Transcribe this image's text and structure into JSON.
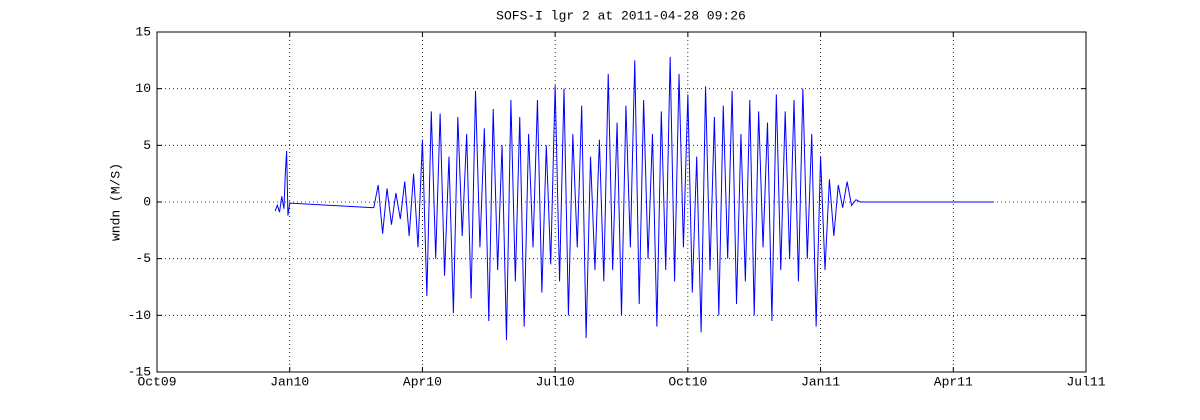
{
  "chart_data": {
    "type": "line",
    "title": "SOFS-I lgr 2 at 2011-04-28 09:26",
    "y_label": "wndn (M/S)",
    "color": "#0000ff",
    "grid": true,
    "xlim": [
      0,
      21
    ],
    "xticks": [
      {
        "value": 0,
        "label": "Oct09"
      },
      {
        "value": 3,
        "label": "Jan10"
      },
      {
        "value": 6,
        "label": "Apr10"
      },
      {
        "value": 9,
        "label": "Jul10"
      },
      {
        "value": 12,
        "label": "Oct10"
      },
      {
        "value": 15,
        "label": "Jan11"
      },
      {
        "value": 18,
        "label": "Apr11"
      },
      {
        "value": 21,
        "label": "Jul11"
      }
    ],
    "ylim": [
      -15,
      15
    ],
    "yticks": [
      -15,
      -10,
      -5,
      0,
      5,
      10,
      15
    ],
    "x": [
      2.67,
      2.72,
      2.77,
      2.82,
      2.87,
      2.9,
      2.93,
      2.96,
      3.0,
      4.86,
      4.9,
      5.0,
      5.1,
      5.2,
      5.3,
      5.4,
      5.5,
      5.6,
      5.7,
      5.8,
      5.9,
      6.0,
      6.1,
      6.2,
      6.3,
      6.4,
      6.5,
      6.6,
      6.7,
      6.8,
      6.9,
      7.0,
      7.1,
      7.2,
      7.3,
      7.4,
      7.5,
      7.6,
      7.7,
      7.8,
      7.9,
      8.0,
      8.1,
      8.2,
      8.3,
      8.4,
      8.5,
      8.6,
      8.7,
      8.8,
      8.9,
      9.0,
      9.1,
      9.2,
      9.3,
      9.4,
      9.5,
      9.6,
      9.7,
      9.8,
      9.9,
      10.0,
      10.1,
      10.2,
      10.3,
      10.4,
      10.5,
      10.6,
      10.7,
      10.8,
      10.9,
      11.0,
      11.1,
      11.2,
      11.3,
      11.4,
      11.5,
      11.6,
      11.7,
      11.8,
      11.9,
      12.0,
      12.1,
      12.2,
      12.3,
      12.4,
      12.5,
      12.6,
      12.7,
      12.8,
      12.9,
      13.0,
      13.1,
      13.2,
      13.3,
      13.4,
      13.5,
      13.6,
      13.7,
      13.8,
      13.9,
      14.0,
      14.1,
      14.2,
      14.3,
      14.4,
      14.5,
      14.6,
      14.7,
      14.8,
      14.9,
      15.0,
      15.1,
      15.2,
      15.3,
      15.4,
      15.5,
      15.6,
      15.7,
      15.8,
      15.9,
      18.9
    ],
    "values": [
      -0.8,
      -0.3,
      -0.9,
      0.5,
      -0.6,
      2.5,
      4.5,
      -1.2,
      -0.1,
      -0.5,
      -0.5,
      1.5,
      -2.8,
      1.2,
      -2,
      0.8,
      -1.5,
      1.8,
      -3,
      2.5,
      -4,
      5.5,
      -8.3,
      8,
      -5,
      7.8,
      -6.5,
      4,
      -9.8,
      7.5,
      -3,
      6,
      -8.5,
      9.8,
      -4,
      6.5,
      -10.5,
      8.2,
      -6,
      5,
      -12.2,
      9,
      -7,
      7.5,
      -11,
      6,
      -4,
      9,
      -8,
      5,
      -5.5,
      10.3,
      -7,
      10,
      -10,
      6,
      -4,
      8.5,
      -12,
      4,
      -6,
      5.5,
      -7,
      11.3,
      -6,
      7,
      -10,
      8.5,
      -4,
      12.5,
      -9,
      9,
      -5,
      6,
      -11,
      8,
      -6,
      12.8,
      -7,
      11.3,
      -4,
      9.5,
      -8,
      4,
      -11.5,
      10.2,
      -6,
      7.5,
      -10,
      8.5,
      -5,
      9.8,
      -9,
      6,
      -7,
      9,
      -10,
      8,
      -4,
      7,
      -10.5,
      9.5,
      -6,
      8,
      -5,
      9,
      -7,
      10,
      -5,
      6,
      -11,
      4,
      -6,
      2,
      -3,
      1.5,
      -0.5,
      1.8,
      -0.3,
      0.2,
      0,
      0
    ]
  }
}
